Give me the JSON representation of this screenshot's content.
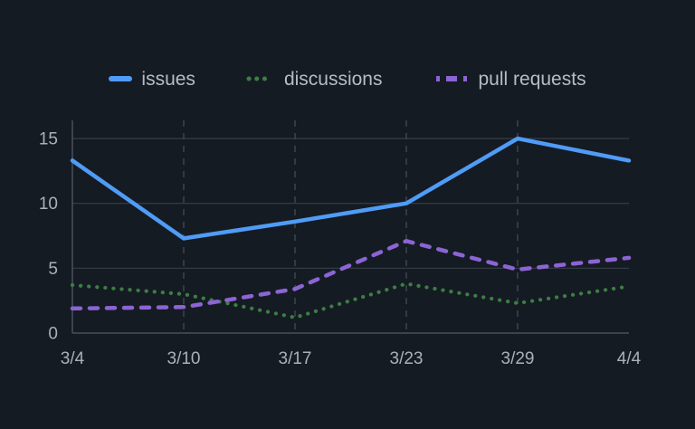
{
  "colors": {
    "background": "#151b23",
    "axis_line": "#4a515c",
    "grid_horizontal": "#333a43",
    "grid_vertical": "#434b56",
    "axis_text": "#a8b1bb",
    "legend_text": "#b4bdc6",
    "issues": "#4f9cf7",
    "discussions": "#3d7e45",
    "pull_requests": "#8c64d4"
  },
  "legend": {
    "items": [
      {
        "label": "issues"
      },
      {
        "label": "discussions"
      },
      {
        "label": "pull requests"
      }
    ]
  },
  "chart_data": {
    "type": "line",
    "x": [
      "3/4",
      "3/10",
      "3/17",
      "3/23",
      "3/29",
      "4/4"
    ],
    "series": [
      {
        "name": "issues",
        "style": "solid",
        "color": "#4f9cf7",
        "values": [
          13.3,
          7.3,
          8.6,
          10,
          15,
          13.3
        ]
      },
      {
        "name": "discussions",
        "style": "dotted",
        "color": "#3d7e45",
        "values": [
          3.7,
          3,
          1.2,
          3.8,
          2.3,
          3.6
        ]
      },
      {
        "name": "pull requests",
        "style": "dashed",
        "color": "#8c64d4",
        "values": [
          1.9,
          2,
          3.4,
          7.1,
          4.9,
          5.8
        ]
      }
    ],
    "yticks": [
      0,
      5,
      10,
      15
    ],
    "ylim": [
      0,
      16.4
    ],
    "xlabel": "",
    "ylabel": "",
    "grid": {
      "horizontal": "solid",
      "vertical": "dashed"
    },
    "legend_position": "top"
  }
}
